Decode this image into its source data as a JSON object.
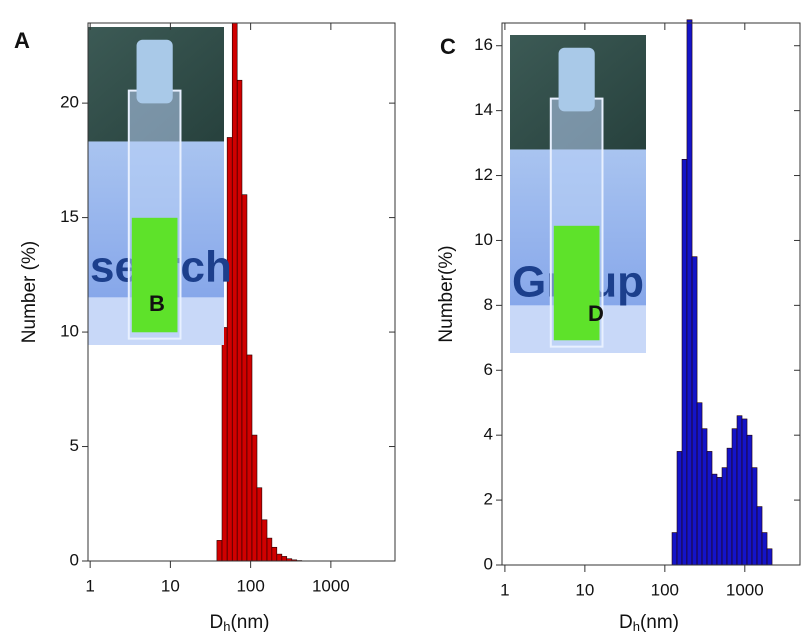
{
  "chart_data": [
    {
      "type": "histogram",
      "panel_label": "A",
      "ylabel": "Number (%)",
      "xlabel": {
        "main": "D",
        "sub": "h",
        "unit": "(nm)"
      },
      "xscale": "log",
      "xlim": [
        0.94,
        6300
      ],
      "ylim": [
        0,
        23.5
      ],
      "xticks": [
        1,
        10,
        100,
        1000
      ],
      "yticks": [
        0,
        5,
        10,
        15,
        20
      ],
      "color": "#d00000",
      "bins": [
        38,
        44,
        51,
        59,
        68,
        78,
        90,
        104,
        120,
        138,
        160,
        184,
        212,
        245,
        282,
        326,
        376,
        434
      ],
      "values": [
        0.9,
        10.2,
        18.5,
        23.5,
        21,
        16,
        9,
        5.5,
        3.2,
        1.8,
        1.0,
        0.6,
        0.3,
        0.2,
        0.1,
        0.05,
        0.02
      ],
      "inset": {
        "text": "search",
        "label": "B"
      }
    },
    {
      "type": "histogram",
      "panel_label": "C",
      "ylabel": "Number(%)",
      "xlabel": {
        "main": "D",
        "sub": "h",
        "unit": "(nm)"
      },
      "xscale": "log",
      "xlim": [
        0.92,
        4900
      ],
      "ylim": [
        0,
        16.7
      ],
      "xticks": [
        1,
        10,
        100,
        1000
      ],
      "yticks": [
        0,
        2,
        4,
        6,
        8,
        10,
        12,
        14,
        16
      ],
      "color": "#1414c8",
      "bins": [
        123,
        142,
        164,
        189,
        219,
        253,
        292,
        337,
        389,
        449,
        519,
        599,
        692,
        799,
        923,
        1066,
        1231,
        1422,
        1642,
        1897,
        2191
      ],
      "values": [
        1.0,
        3.5,
        12.5,
        16.8,
        9.5,
        5.0,
        4.2,
        3.5,
        2.8,
        2.7,
        3.0,
        3.6,
        4.2,
        4.6,
        4.5,
        4.0,
        3.0,
        1.8,
        1.0,
        0.5
      ],
      "inset": {
        "text": "Group",
        "label": "D"
      }
    }
  ]
}
